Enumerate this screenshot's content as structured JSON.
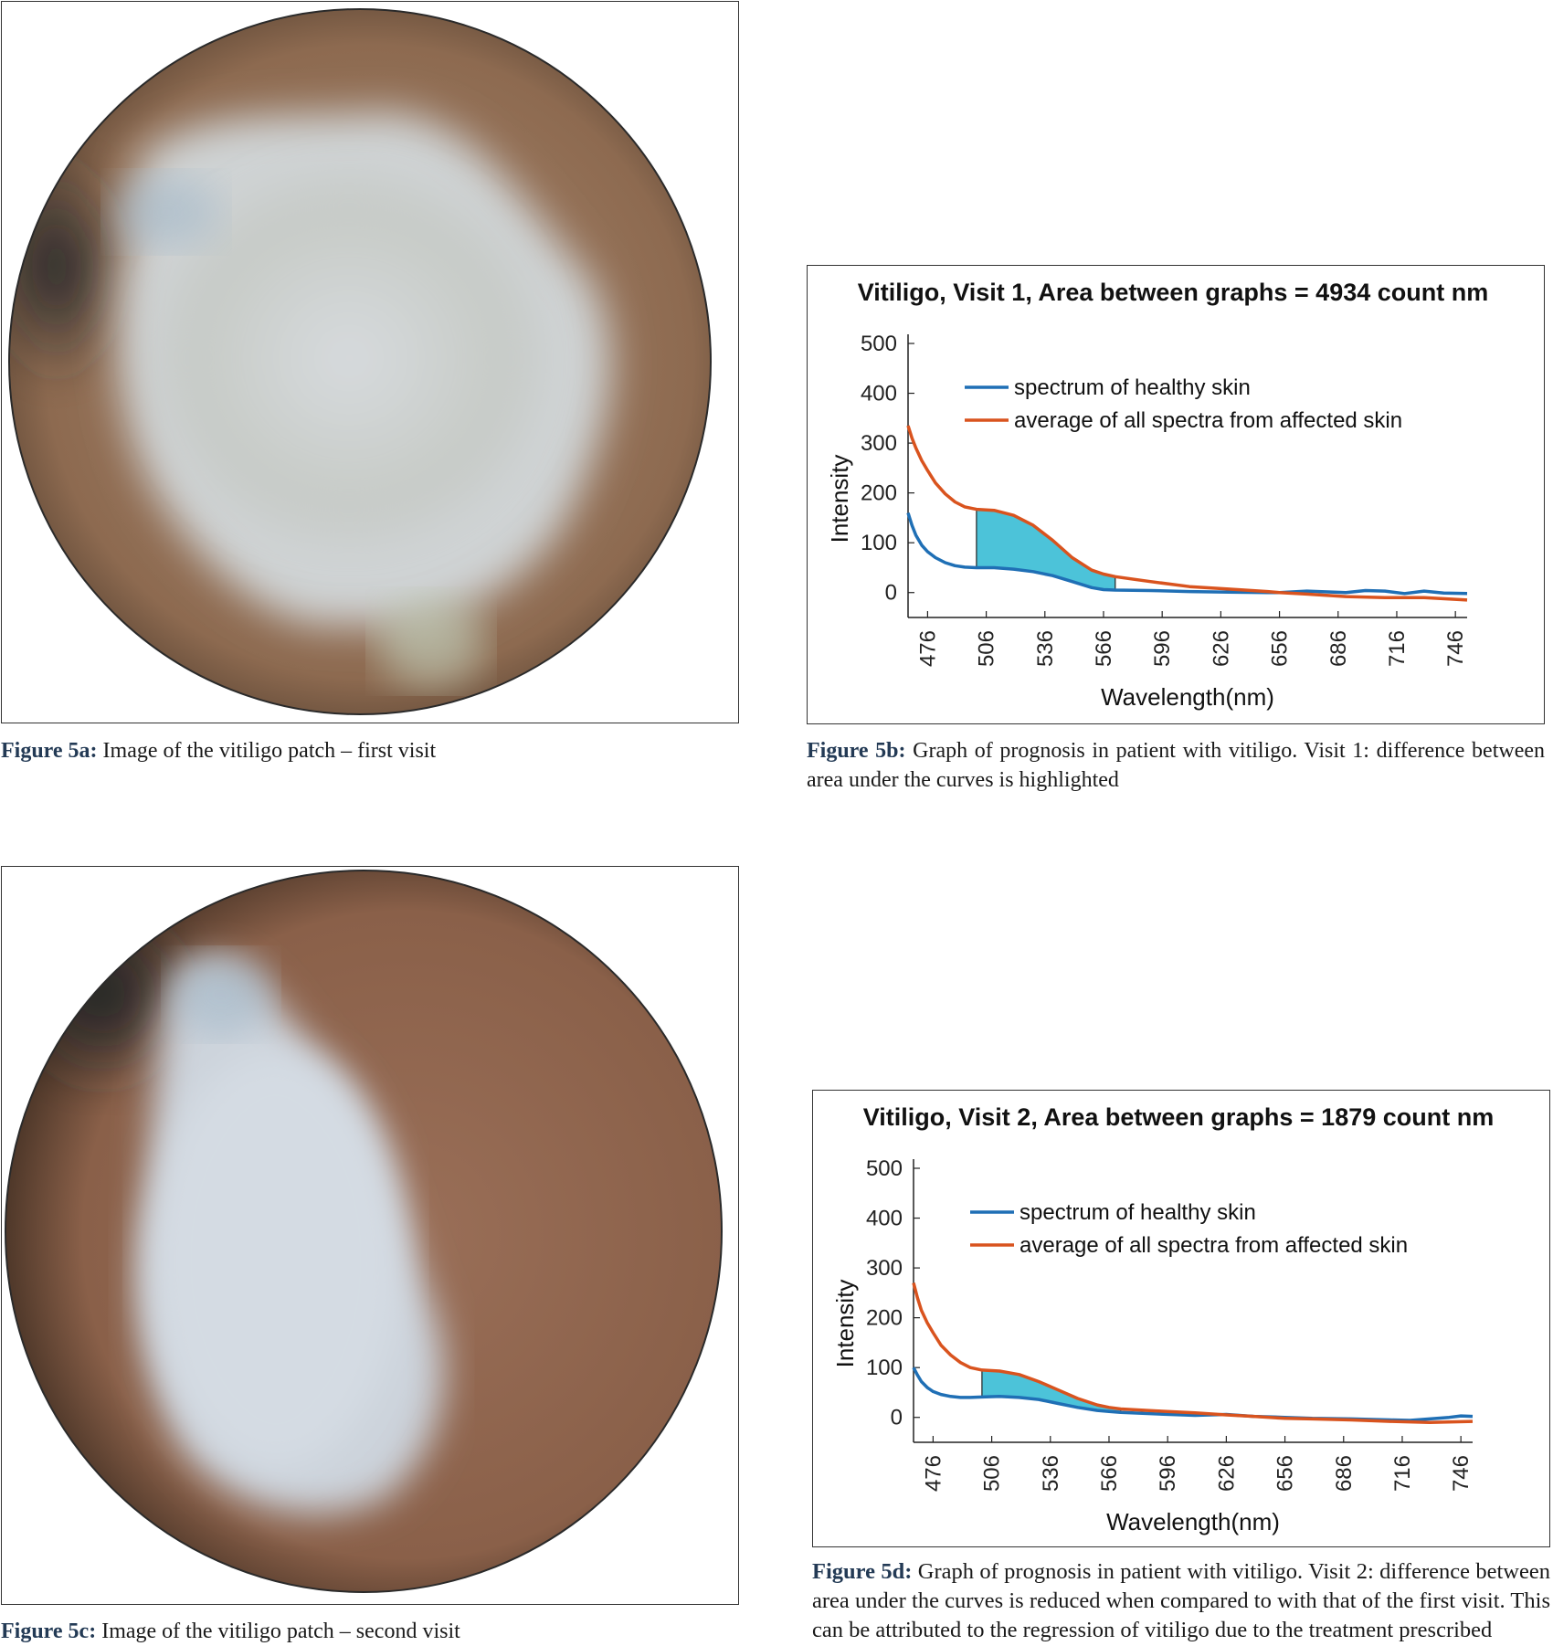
{
  "figure_5a": {
    "caption_label": "Figure 5a:",
    "caption_text": " Image of the vitiligo patch – first visit"
  },
  "figure_5b": {
    "caption_label": "Figure 5b:",
    "caption_text": " Graph of prognosis in patient with vitiligo. Visit 1: difference between area under the curves is highlighted"
  },
  "figure_5c": {
    "caption_label": "Figure 5c:",
    "caption_text": " Image of the vitiligo patch – second visit"
  },
  "figure_5d": {
    "caption_label": "Figure 5d:",
    "caption_text": " Graph of prognosis in patient with vitiligo. Visit 2: difference between area under the curves is reduced when compared to with that of the first visit. This can be attributed to the regression of vitiligo due to the treatment prescribed"
  },
  "colors": {
    "healthy": "#1f6fb5",
    "affected": "#d9531e",
    "fill": "#4cc3d9"
  },
  "chart_data": [
    {
      "type": "line",
      "title": "Vitiligo, Visit 1, Area between graphs = 4934 count nm",
      "xlabel": "Wavelength(nm)",
      "ylabel": "Intensity",
      "xlim": [
        466,
        752
      ],
      "ylim": [
        -50,
        500
      ],
      "xticks": [
        476,
        506,
        536,
        566,
        596,
        626,
        656,
        686,
        716,
        746
      ],
      "yticks": [
        0,
        100,
        200,
        300,
        400,
        500
      ],
      "legend_position": "top-center",
      "shaded_region": [
        501,
        572
      ],
      "series": [
        {
          "name": "spectrum of healthy skin",
          "x": [
            466,
            468,
            470,
            473,
            476,
            480,
            485,
            490,
            495,
            501,
            510,
            520,
            530,
            540,
            550,
            560,
            566,
            572,
            590,
            610,
            630,
            650,
            656,
            670,
            690,
            700,
            710,
            720,
            730,
            740,
            752
          ],
          "y": [
            160,
            135,
            115,
            95,
            82,
            70,
            60,
            54,
            51,
            50,
            50,
            47,
            42,
            34,
            22,
            10,
            6,
            5,
            4,
            2,
            1,
            0,
            0,
            3,
            0,
            4,
            3,
            -2,
            3,
            -1,
            -2
          ]
        },
        {
          "name": "average of all spectra from affected skin",
          "x": [
            466,
            468,
            470,
            473,
            476,
            480,
            485,
            490,
            495,
            501,
            510,
            520,
            530,
            540,
            550,
            560,
            566,
            572,
            590,
            610,
            630,
            650,
            656,
            670,
            690,
            710,
            730,
            752
          ],
          "y": [
            335,
            310,
            290,
            265,
            245,
            220,
            198,
            182,
            172,
            167,
            165,
            155,
            135,
            105,
            70,
            45,
            37,
            32,
            22,
            12,
            7,
            2,
            0,
            -3,
            -8,
            -10,
            -10,
            -15
          ]
        }
      ]
    },
    {
      "type": "line",
      "title": "Vitiligo, Visit 2, Area between graphs = 1879 count nm",
      "xlabel": "Wavelength(nm)",
      "ylabel": "Intensity",
      "xlim": [
        466,
        752
      ],
      "ylim": [
        -50,
        500
      ],
      "xticks": [
        476,
        506,
        536,
        566,
        596,
        626,
        656,
        686,
        716,
        746
      ],
      "yticks": [
        0,
        100,
        200,
        300,
        400,
        500
      ],
      "legend_position": "top-center",
      "shaded_region": [
        501,
        572
      ],
      "series": [
        {
          "name": "spectrum of healthy skin",
          "x": [
            466,
            468,
            470,
            473,
            476,
            480,
            485,
            490,
            495,
            501,
            510,
            520,
            530,
            540,
            550,
            560,
            566,
            572,
            590,
            610,
            626,
            640,
            656,
            670,
            690,
            710,
            720,
            730,
            740,
            746,
            752
          ],
          "y": [
            100,
            85,
            72,
            60,
            52,
            46,
            42,
            40,
            40,
            41,
            42,
            40,
            36,
            28,
            20,
            14,
            12,
            10,
            7,
            4,
            6,
            2,
            0,
            -2,
            -3,
            -5,
            -6,
            -3,
            0,
            3,
            2
          ]
        },
        {
          "name": "average of all spectra from affected skin",
          "x": [
            466,
            468,
            470,
            473,
            476,
            480,
            485,
            490,
            495,
            501,
            510,
            520,
            530,
            540,
            550,
            560,
            566,
            572,
            590,
            610,
            626,
            640,
            656,
            670,
            690,
            710,
            730,
            752
          ],
          "y": [
            270,
            240,
            215,
            190,
            170,
            145,
            125,
            110,
            100,
            95,
            93,
            86,
            72,
            55,
            38,
            25,
            20,
            17,
            13,
            9,
            5,
            2,
            -2,
            -3,
            -5,
            -8,
            -10,
            -8
          ]
        }
      ]
    }
  ]
}
